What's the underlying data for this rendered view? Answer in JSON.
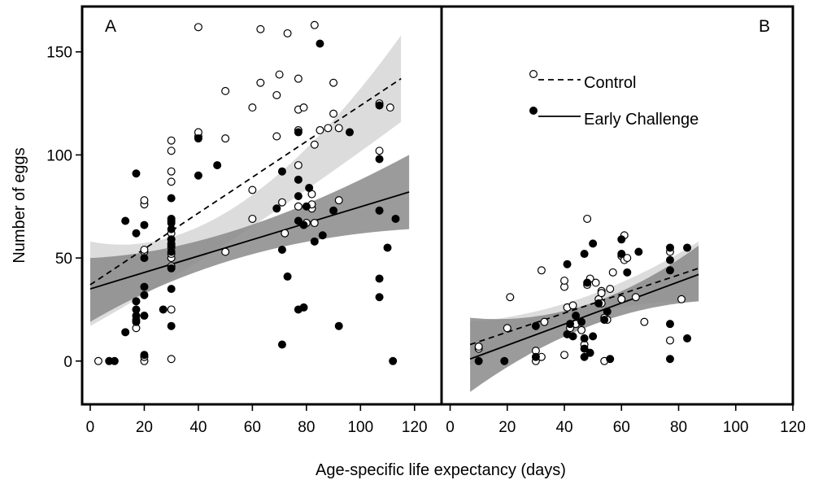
{
  "chart_data": {
    "type": "scatter",
    "ylabel": "Number of eggs",
    "xlabel": "Age-specific life expectancy (days)",
    "y_ticks": [
      0,
      50,
      100,
      150
    ],
    "x_ticks": [
      0,
      20,
      40,
      60,
      80,
      100,
      120
    ],
    "ylim": [
      -21,
      172
    ],
    "grid": false,
    "legend": {
      "position": "top-right of panel B",
      "entries": [
        {
          "label": "Control",
          "marker": "open-circle",
          "line": "dashed"
        },
        {
          "label": "Early Challenge",
          "marker": "filled-circle",
          "line": "solid"
        }
      ]
    },
    "colors": {
      "control_band": "#dcdcdc",
      "challenge_band": "#8a8a8a",
      "overlap_band": "#9e9e9e",
      "marker": "#000000"
    },
    "panels": [
      {
        "label": "A",
        "xlim": [
          -3,
          130
        ],
        "series": [
          {
            "name": "Control",
            "fit": {
              "x0": 0,
              "y0": 37,
              "x1": 115,
              "y1": 137
            },
            "band": {
              "x0": 0,
              "lower0": 17,
              "upper0": 58,
              "xmid": 55,
              "lowermid": 61,
              "uppermid": 76,
              "x1": 115,
              "lower1": 116,
              "upper1": 158
            },
            "points": [
              [
                3,
                0
              ],
              [
                17,
                16
              ],
              [
                17,
                20
              ],
              [
                20,
                0
              ],
              [
                20,
                2
              ],
              [
                20,
                53
              ],
              [
                20,
                54
              ],
              [
                20,
                76
              ],
              [
                20,
                78
              ],
              [
                30,
                1
              ],
              [
                30,
                25
              ],
              [
                30,
                46
              ],
              [
                30,
                50
              ],
              [
                30,
                52
              ],
              [
                30,
                55
              ],
              [
                30,
                57
              ],
              [
                30,
                59
              ],
              [
                30,
                62
              ],
              [
                30,
                68
              ],
              [
                30,
                87
              ],
              [
                30,
                92
              ],
              [
                30,
                102
              ],
              [
                30,
                107
              ],
              [
                40,
                109
              ],
              [
                40,
                111
              ],
              [
                40,
                162
              ],
              [
                50,
                53
              ],
              [
                50,
                108
              ],
              [
                50,
                131
              ],
              [
                60,
                69
              ],
              [
                60,
                83
              ],
              [
                60,
                123
              ],
              [
                63,
                135
              ],
              [
                63,
                161
              ],
              [
                69,
                109
              ],
              [
                69,
                129
              ],
              [
                70,
                139
              ],
              [
                71,
                77
              ],
              [
                72,
                62
              ],
              [
                73,
                159
              ],
              [
                77,
                75
              ],
              [
                77,
                95
              ],
              [
                77,
                112
              ],
              [
                77,
                122
              ],
              [
                77,
                137
              ],
              [
                79,
                123
              ],
              [
                80,
                67
              ],
              [
                82,
                74
              ],
              [
                82,
                76
              ],
              [
                82,
                81
              ],
              [
                83,
                67
              ],
              [
                83,
                105
              ],
              [
                83,
                163
              ],
              [
                85,
                112
              ],
              [
                88,
                113
              ],
              [
                90,
                120
              ],
              [
                90,
                135
              ],
              [
                92,
                113
              ],
              [
                92,
                78
              ],
              [
                107,
                102
              ],
              [
                107,
                125
              ],
              [
                111,
                123
              ]
            ]
          },
          {
            "name": "Early Challenge",
            "fit": {
              "x0": 0,
              "y0": 35,
              "x1": 118,
              "y1": 82
            },
            "band": {
              "x0": 0,
              "lower0": 19,
              "upper0": 50,
              "xmid": 55,
              "lowermid": 50,
              "uppermid": 64,
              "x1": 118,
              "lower1": 64,
              "upper1": 100
            },
            "points": [
              [
                7,
                0
              ],
              [
                9,
                0
              ],
              [
                13,
                14
              ],
              [
                13,
                68
              ],
              [
                17,
                19
              ],
              [
                17,
                22
              ],
              [
                17,
                25
              ],
              [
                17,
                29
              ],
              [
                17,
                62
              ],
              [
                17,
                91
              ],
              [
                20,
                3
              ],
              [
                20,
                22
              ],
              [
                20,
                32
              ],
              [
                20,
                36
              ],
              [
                20,
                50
              ],
              [
                20,
                66
              ],
              [
                27,
                25
              ],
              [
                30,
                17
              ],
              [
                30,
                35
              ],
              [
                30,
                45
              ],
              [
                30,
                53
              ],
              [
                30,
                56
              ],
              [
                30,
                59
              ],
              [
                30,
                64
              ],
              [
                30,
                67
              ],
              [
                30,
                69
              ],
              [
                30,
                79
              ],
              [
                40,
                90
              ],
              [
                40,
                108
              ],
              [
                47,
                95
              ],
              [
                69,
                74
              ],
              [
                71,
                8
              ],
              [
                71,
                54
              ],
              [
                71,
                92
              ],
              [
                73,
                41
              ],
              [
                77,
                25
              ],
              [
                77,
                68
              ],
              [
                77,
                80
              ],
              [
                77,
                88
              ],
              [
                77,
                111
              ],
              [
                79,
                26
              ],
              [
                79,
                66
              ],
              [
                80,
                75
              ],
              [
                81,
                84
              ],
              [
                83,
                58
              ],
              [
                85,
                154
              ],
              [
                86,
                61
              ],
              [
                90,
                73
              ],
              [
                92,
                17
              ],
              [
                96,
                111
              ],
              [
                107,
                31
              ],
              [
                107,
                40
              ],
              [
                107,
                73
              ],
              [
                107,
                98
              ],
              [
                107,
                124
              ],
              [
                110,
                55
              ],
              [
                112,
                0
              ],
              [
                113,
                69
              ]
            ]
          }
        ]
      },
      {
        "label": "B",
        "xlim": [
          -3,
          120
        ],
        "series": [
          {
            "name": "Control",
            "fit": {
              "x0": 7,
              "y0": 8,
              "x1": 87,
              "y1": 45
            },
            "band": {
              "x0": 7,
              "lower0": -2,
              "upper0": 19,
              "xmid": 47,
              "lowermid": 22,
              "uppermid": 31,
              "x1": 87,
              "lower1": 29,
              "upper1": 58
            },
            "points": [
              [
                10,
                6
              ],
              [
                10,
                7
              ],
              [
                20,
                16
              ],
              [
                21,
                31
              ],
              [
                30,
                0
              ],
              [
                30,
                5
              ],
              [
                32,
                2
              ],
              [
                32,
                44
              ],
              [
                33,
                19
              ],
              [
                40,
                36
              ],
              [
                40,
                39
              ],
              [
                40,
                3
              ],
              [
                41,
                26
              ],
              [
                42,
                16
              ],
              [
                43,
                27
              ],
              [
                44,
                18
              ],
              [
                46,
                15
              ],
              [
                47,
                8
              ],
              [
                48,
                37
              ],
              [
                48,
                69
              ],
              [
                49,
                40
              ],
              [
                51,
                38
              ],
              [
                52,
                30
              ],
              [
                53,
                28
              ],
              [
                53,
                34
              ],
              [
                53,
                33
              ],
              [
                54,
                21
              ],
              [
                54,
                0
              ],
              [
                55,
                20
              ],
              [
                56,
                35
              ],
              [
                57,
                43
              ],
              [
                60,
                30
              ],
              [
                60,
                51
              ],
              [
                61,
                49
              ],
              [
                61,
                61
              ],
              [
                62,
                50
              ],
              [
                65,
                31
              ],
              [
                68,
                19
              ],
              [
                77,
                53
              ],
              [
                77,
                10
              ],
              [
                81,
                30
              ]
            ]
          },
          {
            "name": "Early Challenge",
            "fit": {
              "x0": 7,
              "y0": 1,
              "x1": 87,
              "y1": 42
            },
            "band": {
              "x0": 7,
              "lower0": -15,
              "upper0": 21,
              "xmid": 47,
              "lowermid": 16,
              "uppermid": 27,
              "x1": 87,
              "lower1": 29,
              "upper1": 56
            },
            "points": [
              [
                10,
                0
              ],
              [
                19,
                0
              ],
              [
                30,
                17
              ],
              [
                30,
                2
              ],
              [
                41,
                13
              ],
              [
                41,
                47
              ],
              [
                42,
                18
              ],
              [
                43,
                12
              ],
              [
                44,
                22
              ],
              [
                46,
                19
              ],
              [
                47,
                11
              ],
              [
                47,
                6
              ],
              [
                47,
                52
              ],
              [
                47,
                2
              ],
              [
                48,
                38
              ],
              [
                49,
                4
              ],
              [
                50,
                57
              ],
              [
                50,
                12
              ],
              [
                52,
                28
              ],
              [
                54,
                20
              ],
              [
                55,
                24
              ],
              [
                56,
                1
              ],
              [
                60,
                59
              ],
              [
                60,
                52
              ],
              [
                62,
                43
              ],
              [
                66,
                53
              ],
              [
                77,
                55
              ],
              [
                77,
                49
              ],
              [
                77,
                44
              ],
              [
                77,
                18
              ],
              [
                77,
                1
              ],
              [
                83,
                55
              ],
              [
                83,
                11
              ]
            ]
          }
        ]
      }
    ]
  }
}
